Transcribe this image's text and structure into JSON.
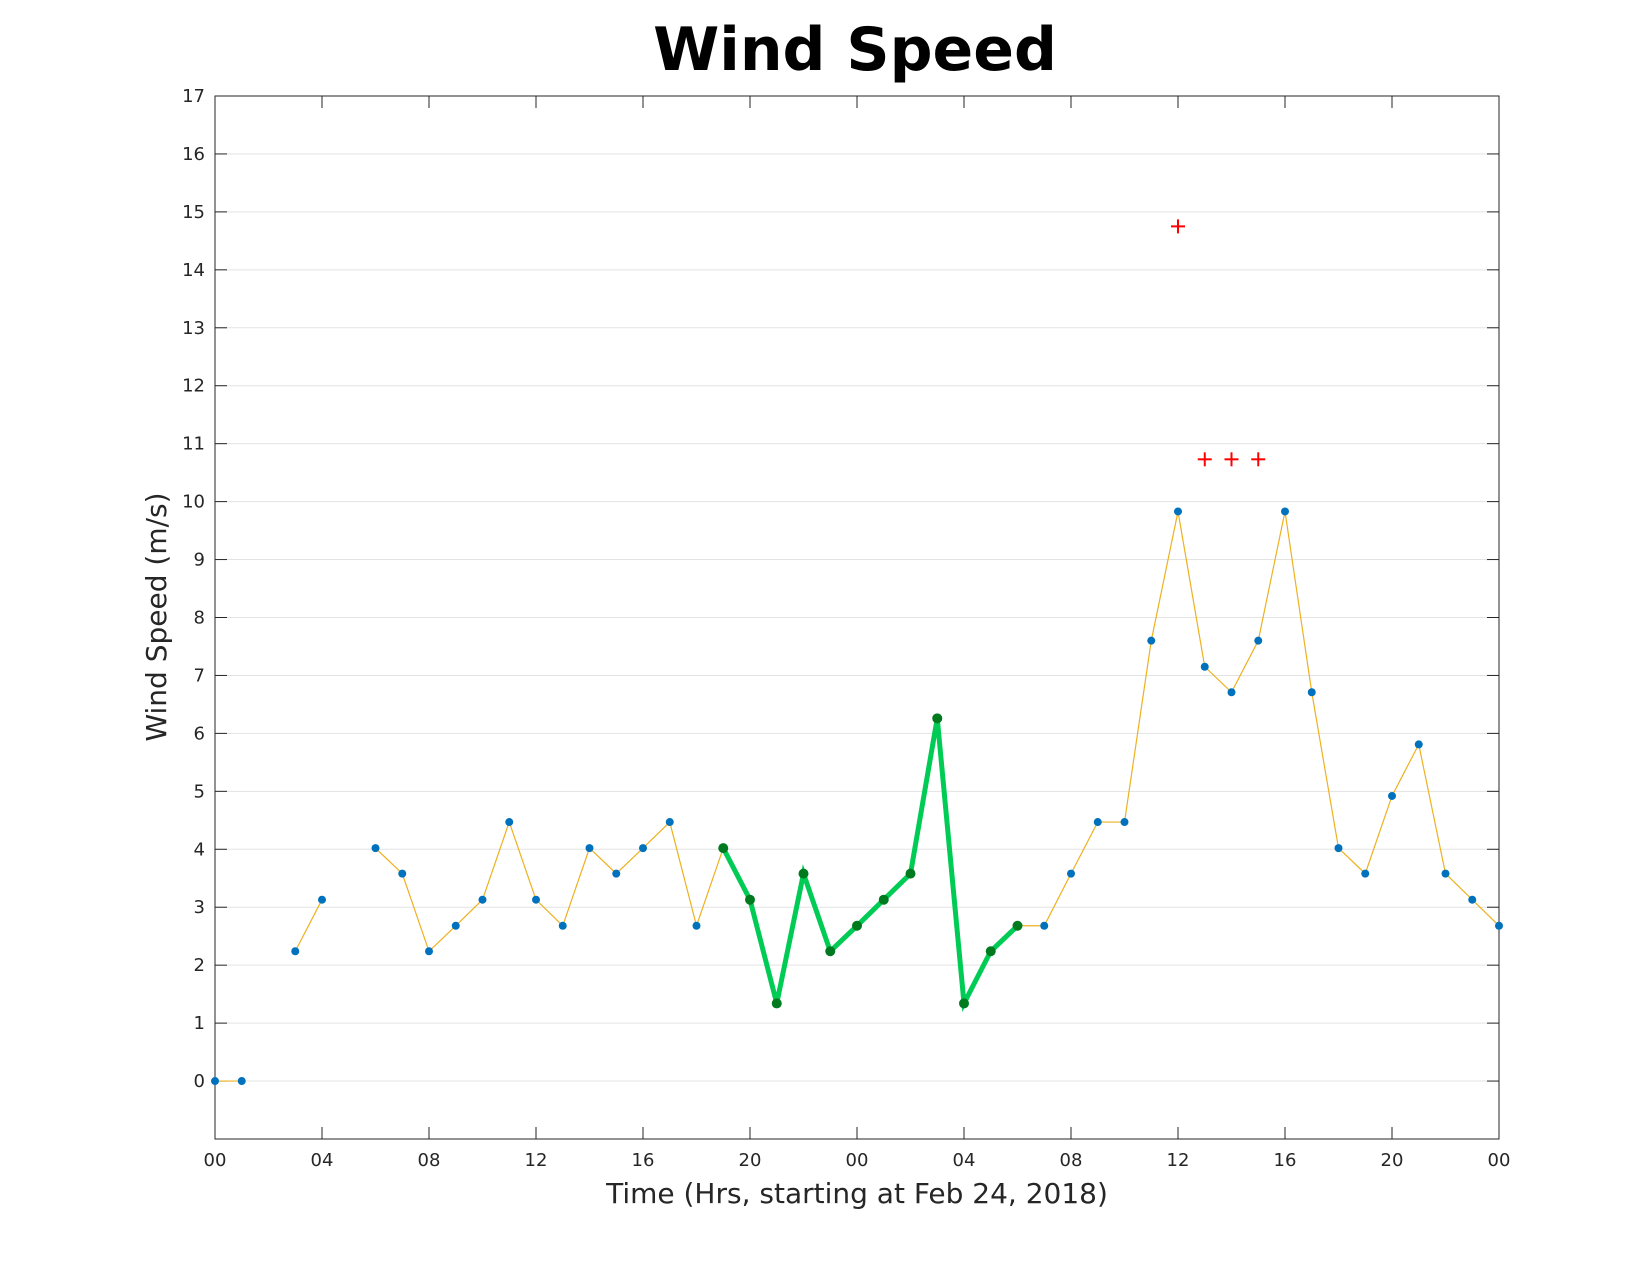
{
  "chart_data": {
    "type": "line",
    "title": "Wind Speed",
    "xlabel": "Time (Hrs, starting at Feb 24, 2018)",
    "ylabel": "Wind Speed (m/s)",
    "xlim": [
      0,
      48
    ],
    "ylim": [
      -1,
      17
    ],
    "grid": "horizontal",
    "x_ticks": [
      0,
      4,
      8,
      12,
      16,
      20,
      24,
      28,
      32,
      36,
      40,
      44,
      48
    ],
    "x_tick_labels": [
      "00",
      "04",
      "08",
      "12",
      "16",
      "20",
      "00",
      "04",
      "08",
      "12",
      "16",
      "20",
      "00"
    ],
    "y_ticks": [
      0,
      1,
      2,
      3,
      4,
      5,
      6,
      7,
      8,
      9,
      10,
      11,
      12,
      13,
      14,
      15,
      16,
      17
    ],
    "y_tick_labels": [
      "0",
      "1",
      "2",
      "3",
      "4",
      "5",
      "6",
      "7",
      "8",
      "9",
      "10",
      "11",
      "12",
      "13",
      "14",
      "15",
      "16",
      "17"
    ],
    "series": [
      {
        "role": "all observations",
        "style": "thin line with dot markers",
        "line_color": "#EDB120",
        "marker_color": "#0072BD",
        "segments": [
          {
            "x": [
              0,
              1
            ],
            "y": [
              0,
              0
            ]
          },
          {
            "x": [
              3,
              4
            ],
            "y": [
              2.24,
              3.13
            ]
          },
          {
            "x": [
              6,
              7,
              8,
              9,
              10,
              11,
              12,
              13,
              14,
              15,
              16,
              17,
              18,
              19,
              20,
              21,
              22,
              23,
              24,
              25,
              26,
              27,
              28,
              29,
              30,
              31,
              32,
              33,
              34,
              35,
              36,
              37,
              38,
              39,
              40,
              41,
              42,
              43,
              44,
              45,
              46,
              47,
              48
            ],
            "y": [
              4.02,
              3.58,
              2.24,
              2.68,
              3.13,
              4.47,
              3.13,
              2.68,
              4.02,
              3.58,
              4.02,
              4.47,
              2.68,
              4.02,
              3.13,
              1.34,
              3.58,
              2.24,
              2.68,
              3.13,
              3.58,
              6.26,
              1.34,
              2.24,
              2.68,
              2.68,
              3.58,
              4.47,
              4.47,
              7.6,
              9.83,
              7.15,
              6.71,
              7.6,
              9.83,
              6.71,
              4.02,
              3.58,
              4.92,
              5.81,
              3.58,
              3.13,
              2.68
            ]
          }
        ]
      },
      {
        "role": "highlighted period",
        "style": "thick line with dot markers",
        "line_color": "#00CC55",
        "marker_color": "#007A1F",
        "x": [
          19,
          20,
          21,
          22,
          23,
          24,
          25,
          26,
          27,
          28,
          29,
          30
        ],
        "y": [
          4.02,
          3.13,
          1.34,
          3.58,
          2.24,
          2.68,
          3.13,
          3.58,
          6.26,
          1.34,
          2.24,
          2.68
        ]
      },
      {
        "role": "gust markers",
        "style": "plus markers",
        "marker_color": "#FF0000",
        "x": [
          36,
          37,
          38,
          39
        ],
        "y": [
          14.75,
          10.73,
          10.73,
          10.73
        ]
      }
    ]
  }
}
